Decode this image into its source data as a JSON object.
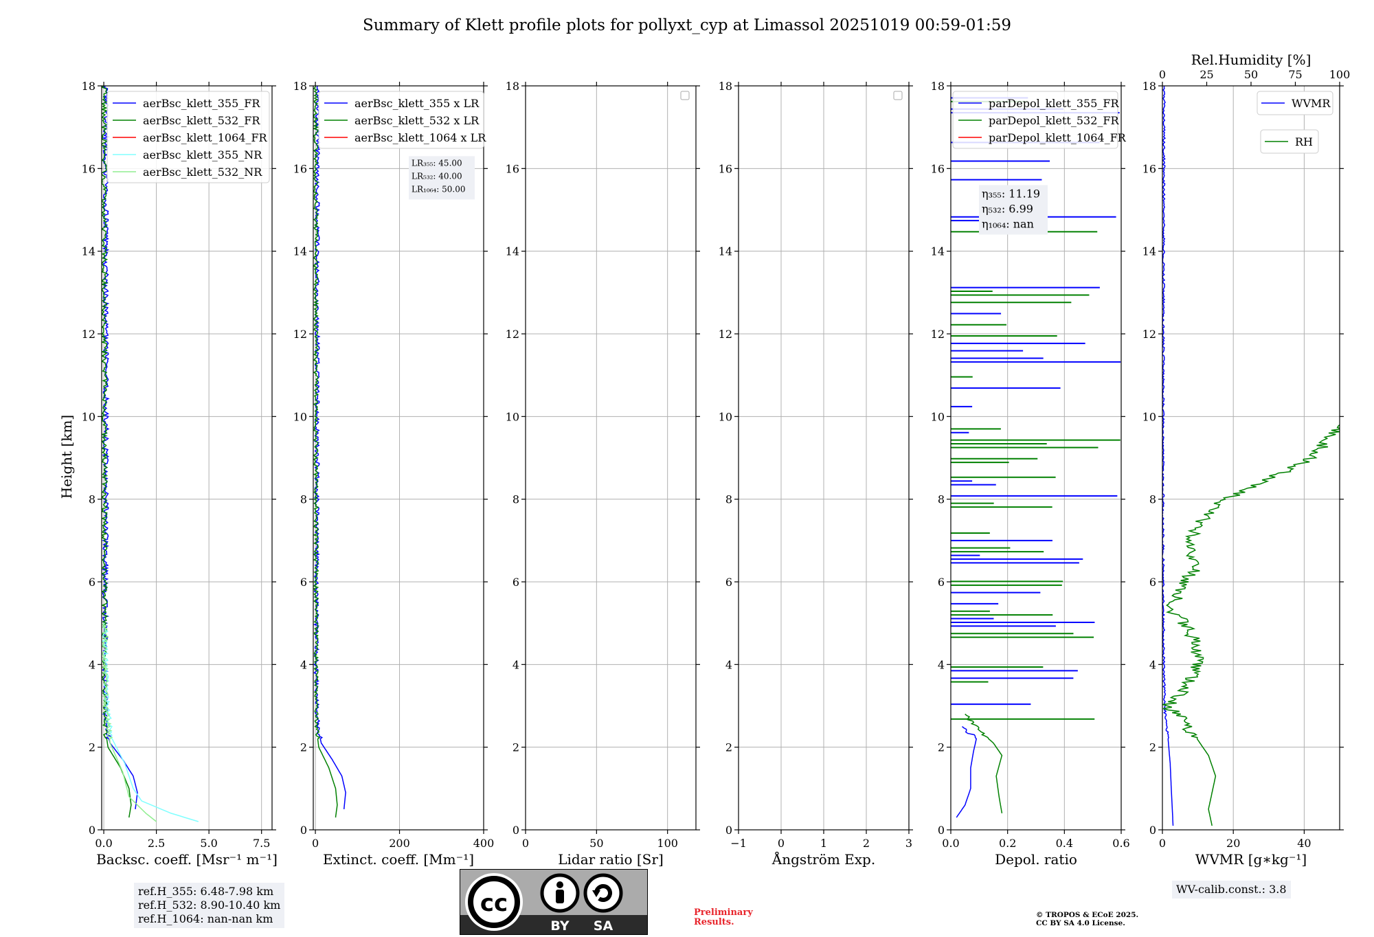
{
  "figure": {
    "title": "Summary of Klett profile plots for pollyxt_cyp at Limassol 20251019 00:59-01:59",
    "ref_heights": [
      "ref.H_355: 6.48-7.98 km",
      "ref.H_532: 8.90-10.40 km",
      "ref.H_1064: nan-nan km"
    ],
    "wv_calib": "WV-calib.const.: 3.8",
    "preliminary": [
      "Preliminary",
      "Results."
    ],
    "copyright": [
      "© TROPOS & ECoE 2025.",
      "CC BY SA 4.0 License."
    ],
    "license_badge": {
      "by": "BY",
      "sa": "SA",
      "cc": "cc"
    },
    "colors": {
      "blue": "#0000ff",
      "green": "#008000",
      "red": "#ff0000",
      "cyan": "#80ffff",
      "lightgreen": "#90ee90",
      "grid": "#b0b0b0",
      "red_text": "#e8242b"
    }
  },
  "chart_data": [
    {
      "type": "line",
      "ylabel": "Height [km]",
      "xlabel": "Backsc. coeff. [Msr$^{-1}$ m$^{-1}$]",
      "xlabel_display": "Backsc. coeff. [Msr⁻¹ m⁻¹]",
      "xlim": [
        -0.1,
        8.0
      ],
      "ylim": [
        0,
        18
      ],
      "xticks": [
        0,
        2.5,
        5.0,
        7.5
      ],
      "xtick_labels": [
        "0.0",
        "2.5",
        "5.0",
        "7.5"
      ],
      "yticks": [
        0,
        2,
        4,
        6,
        8,
        10,
        12,
        14,
        16,
        18
      ],
      "legend": [
        "aerBsc_klett_355_FR",
        "aerBsc_klett_532_FR",
        "aerBsc_klett_1064_FR",
        "aerBsc_klett_355_NR",
        "aerBsc_klett_532_NR"
      ],
      "series": [
        {
          "name": "aerBsc_klett_355_FR",
          "color": "blue",
          "profile": [
            [
              1.5,
              0.5
            ],
            [
              1.6,
              0.9
            ],
            [
              1.4,
              1.3
            ],
            [
              0.9,
              1.7
            ],
            [
              0.3,
              2.1
            ],
            [
              0.1,
              2.5
            ],
            [
              0.05,
              4
            ],
            [
              0.1,
              8
            ],
            [
              0.1,
              18
            ]
          ]
        },
        {
          "name": "aerBsc_klett_532_FR",
          "color": "green",
          "profile": [
            [
              1.2,
              0.3
            ],
            [
              1.3,
              0.6
            ],
            [
              1.2,
              1.0
            ],
            [
              0.8,
              1.5
            ],
            [
              0.2,
              2.0
            ],
            [
              0.05,
              2.5
            ],
            [
              0.02,
              18
            ]
          ]
        },
        {
          "name": "aerBsc_klett_355_NR",
          "color": "cyan",
          "profile": [
            [
              4.5,
              0.2
            ],
            [
              3.2,
              0.4
            ],
            [
              1.8,
              0.7
            ],
            [
              1.4,
              1.0
            ],
            [
              1.0,
              1.6
            ],
            [
              0.4,
              2.2
            ],
            [
              0.15,
              3
            ],
            [
              0.05,
              5
            ]
          ]
        },
        {
          "name": "aerBsc_klett_532_NR",
          "color": "lightgreen",
          "profile": [
            [
              2.5,
              0.2
            ],
            [
              2.0,
              0.4
            ],
            [
              1.2,
              0.8
            ],
            [
              0.9,
              1.4
            ],
            [
              0.3,
              2.1
            ],
            [
              0.1,
              3
            ],
            [
              0.02,
              5
            ]
          ]
        }
      ]
    },
    {
      "type": "line",
      "xlabel": "Extinct. coeff. [Mm$^{-1}$]",
      "xlabel_display": "Extinct. coeff. [Mm⁻¹]",
      "xlim": [
        -5,
        400
      ],
      "ylim": [
        0,
        18
      ],
      "xticks": [
        0,
        200,
        400
      ],
      "xtick_labels": [
        "0",
        "200",
        "400"
      ],
      "yticks": [
        0,
        2,
        4,
        6,
        8,
        10,
        12,
        14,
        16,
        18
      ],
      "legend": [
        "aerBsc_klett_355 x LR",
        "aerBsc_klett_532 x LR",
        "aerBsc_klett_1064 x LR"
      ],
      "annotation": [
        "LR₃₅₅: 45.00",
        "LR₅₃₂: 40.00",
        "LR₁₀₆₄: 50.00"
      ],
      "series": [
        {
          "name": "aerBsc_klett_355 x LR",
          "color": "blue",
          "profile": [
            [
              68,
              0.5
            ],
            [
              72,
              0.9
            ],
            [
              63,
              1.3
            ],
            [
              40,
              1.7
            ],
            [
              14,
              2.1
            ],
            [
              5,
              2.5
            ],
            [
              2,
              4
            ],
            [
              4,
              8
            ],
            [
              5,
              18
            ]
          ]
        },
        {
          "name": "aerBsc_klett_532 x LR",
          "color": "green",
          "profile": [
            [
              48,
              0.3
            ],
            [
              52,
              0.6
            ],
            [
              48,
              1.0
            ],
            [
              32,
              1.5
            ],
            [
              8,
              2.0
            ],
            [
              2,
              2.5
            ],
            [
              1,
              18
            ]
          ]
        }
      ]
    },
    {
      "type": "line",
      "xlabel": "Lidar ratio [Sr]",
      "xlim": [
        0,
        120
      ],
      "ylim": [
        0,
        18
      ],
      "xticks": [
        0,
        50,
        100
      ],
      "xtick_labels": [
        "0",
        "50",
        "100"
      ],
      "yticks": [
        0,
        2,
        4,
        6,
        8,
        10,
        12,
        14,
        16,
        18
      ],
      "series": []
    },
    {
      "type": "line",
      "xlabel": "Ångström Exp.",
      "xlim": [
        -1,
        3
      ],
      "ylim": [
        0,
        18
      ],
      "xticks": [
        -1,
        0,
        1,
        2,
        3
      ],
      "xtick_labels": [
        "−1",
        "0",
        "1",
        "2",
        "3"
      ],
      "yticks": [
        0,
        2,
        4,
        6,
        8,
        10,
        12,
        14,
        16,
        18
      ],
      "series": []
    },
    {
      "type": "line",
      "xlabel": "Depol. ratio",
      "xlim": [
        0.0,
        0.6
      ],
      "ylim": [
        0,
        18
      ],
      "xticks": [
        0.0,
        0.2,
        0.4,
        0.6
      ],
      "xtick_labels": [
        "0.0",
        "0.2",
        "0.4",
        "0.6"
      ],
      "yticks": [
        0,
        2,
        4,
        6,
        8,
        10,
        12,
        14,
        16,
        18
      ],
      "legend": [
        "parDepol_klett_355_FR",
        "parDepol_klett_532_FR",
        "parDepol_klett_1064_FR"
      ],
      "annotation": [
        "η₃₅₅: 11.19",
        "η₅₃₂: 6.99",
        "η₁₀₆₄: nan"
      ],
      "series": [
        {
          "name": "parDepol_klett_355_FR",
          "color": "blue",
          "profile": [
            [
              0.02,
              0.3
            ],
            [
              0.05,
              0.6
            ],
            [
              0.07,
              1.0
            ],
            [
              0.07,
              1.5
            ],
            [
              0.08,
              1.9
            ],
            [
              0.09,
              2.2
            ],
            [
              0.04,
              2.5
            ]
          ]
        },
        {
          "name": "parDepol_klett_532_FR",
          "color": "green",
          "profile": [
            [
              0.18,
              0.4
            ],
            [
              0.17,
              0.8
            ],
            [
              0.16,
              1.3
            ],
            [
              0.18,
              1.8
            ],
            [
              0.15,
              2.1
            ],
            [
              0.1,
              2.4
            ],
            [
              0.05,
              2.8
            ]
          ]
        }
      ]
    },
    {
      "type": "line",
      "xlabel": "WVMR [$g*kg^{-1}$]",
      "xlabel_display": "WVMR [g∗kg⁻¹]",
      "xlim": [
        0,
        50
      ],
      "ylim": [
        0,
        18
      ],
      "xticks": [
        0,
        20,
        40
      ],
      "xtick_labels": [
        "0",
        "20",
        "40"
      ],
      "yticks": [
        0,
        2,
        4,
        6,
        8,
        10,
        12,
        14,
        16,
        18
      ],
      "top_axis": {
        "label": "Rel.Humidity [%]",
        "lim": [
          0,
          100
        ],
        "ticks": [
          0,
          25,
          50,
          75,
          100
        ],
        "tick_labels": [
          "0",
          "25",
          "50",
          "75",
          "100"
        ]
      },
      "legend": [
        "WVMR",
        "RH"
      ],
      "series": [
        {
          "name": "WVMR",
          "color": "blue",
          "axis": "bottom",
          "profile": [
            [
              3,
              0.1
            ],
            [
              2.8,
              0.5
            ],
            [
              2.5,
              1.0
            ],
            [
              2.2,
              1.6
            ],
            [
              1.6,
              2.2
            ],
            [
              1.0,
              2.6
            ],
            [
              0.6,
              3.0
            ],
            [
              0.4,
              4.0
            ],
            [
              0.2,
              6.0
            ],
            [
              0.2,
              10
            ],
            [
              0.5,
              18
            ]
          ]
        },
        {
          "name": "RH",
          "color": "green",
          "axis": "top",
          "profile": [
            [
              28,
              0.1
            ],
            [
              26,
              0.5
            ],
            [
              28,
              0.9
            ],
            [
              30,
              1.3
            ],
            [
              26,
              1.8
            ],
            [
              18,
              2.3
            ],
            [
              8,
              2.8
            ],
            [
              2,
              3.0
            ],
            [
              12,
              3.3
            ],
            [
              18,
              3.8
            ],
            [
              20,
              4.3
            ],
            [
              15,
              4.9
            ],
            [
              5,
              5.3
            ],
            [
              10,
              5.8
            ],
            [
              18,
              6.3
            ],
            [
              15,
              6.8
            ],
            [
              20,
              7.4
            ],
            [
              35,
              8.0
            ],
            [
              60,
              8.5
            ],
            [
              85,
              9.0
            ],
            [
              95,
              9.5
            ],
            [
              100,
              9.8
            ]
          ]
        }
      ]
    }
  ]
}
